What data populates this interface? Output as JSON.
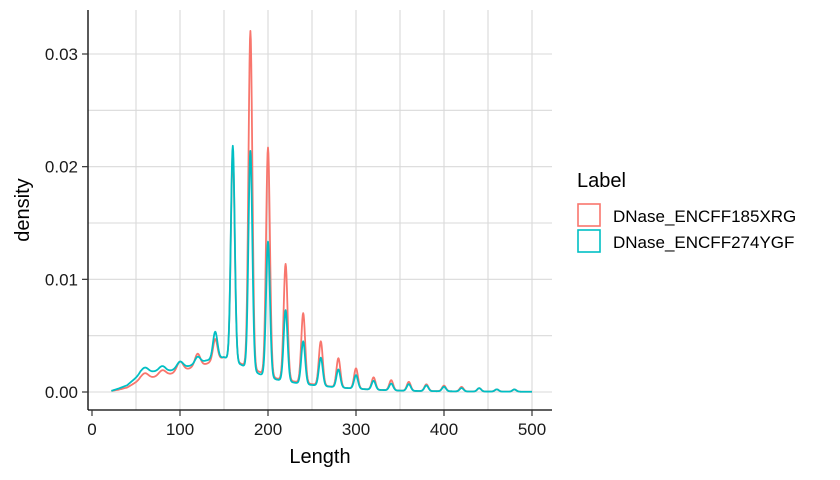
{
  "chart_data": {
    "type": "line",
    "title": "",
    "xlabel": "Length",
    "ylabel": "density",
    "xlim": [
      0,
      500
    ],
    "ylim": [
      0,
      0.033
    ],
    "x_ticks": [
      0,
      100,
      200,
      300,
      400,
      500
    ],
    "x_tick_labels": [
      "0",
      "100",
      "200",
      "300",
      "400",
      "500"
    ],
    "y_ticks": [
      0,
      0.01,
      0.02,
      0.03
    ],
    "y_tick_labels": [
      "0.00",
      "0.01",
      "0.02",
      "0.03"
    ],
    "grid": true,
    "legend_title": "Label",
    "legend_position": "right",
    "x_step": 1,
    "x_range": [
      22,
      500
    ],
    "series": [
      {
        "name": "DNase_ENCFF185XRG",
        "color": "#F8766D",
        "baseline": [
          [
            22,
            0.0001
          ],
          [
            30,
            0.0002
          ],
          [
            40,
            0.0004
          ],
          [
            55,
            0.0011
          ],
          [
            70,
            0.0013
          ],
          [
            85,
            0.0015
          ],
          [
            100,
            0.0018
          ],
          [
            115,
            0.0022
          ],
          [
            130,
            0.0025
          ],
          [
            150,
            0.0031
          ],
          [
            170,
            0.0025
          ],
          [
            190,
            0.0018
          ],
          [
            210,
            0.0012
          ],
          [
            240,
            0.0008
          ],
          [
            280,
            0.0004
          ],
          [
            320,
            0.0002
          ],
          [
            360,
            0.0001
          ],
          [
            420,
            5e-05
          ],
          [
            500,
            2e-05
          ]
        ],
        "peaks": [
          [
            60,
            0.0005,
            4
          ],
          [
            80,
            0.0005,
            4
          ],
          [
            100,
            0.0009,
            3.5
          ],
          [
            120,
            0.0011,
            3
          ],
          [
            140,
            0.0019,
            2.5
          ],
          [
            160,
            0.0184,
            2.2
          ],
          [
            180,
            0.0299,
            2.2
          ],
          [
            200,
            0.0202,
            2.2
          ],
          [
            220,
            0.0103,
            2.2
          ],
          [
            240,
            0.0062,
            2.2
          ],
          [
            260,
            0.0039,
            2.2
          ],
          [
            280,
            0.0026,
            2.2
          ],
          [
            300,
            0.0018,
            2.2
          ],
          [
            320,
            0.0011,
            2.2
          ],
          [
            340,
            0.0009,
            2.2
          ],
          [
            360,
            0.0008,
            2.2
          ],
          [
            380,
            0.0006,
            2.2
          ],
          [
            400,
            0.0005,
            2.2
          ],
          [
            420,
            0.0004,
            2.2
          ],
          [
            440,
            0.0003,
            2.2
          ],
          [
            460,
            0.0002,
            2.2
          ],
          [
            480,
            0.0002,
            2.2
          ]
        ]
      },
      {
        "name": "DNase_ENCFF274YGF",
        "color": "#00BFC4",
        "baseline": [
          [
            22,
            0.0001
          ],
          [
            30,
            0.0003
          ],
          [
            40,
            0.0006
          ],
          [
            55,
            0.0016
          ],
          [
            70,
            0.0018
          ],
          [
            85,
            0.0018
          ],
          [
            100,
            0.0021
          ],
          [
            115,
            0.0024
          ],
          [
            130,
            0.0028
          ],
          [
            150,
            0.0031
          ],
          [
            170,
            0.0024
          ],
          [
            190,
            0.0016
          ],
          [
            210,
            0.0011
          ],
          [
            240,
            0.0007
          ],
          [
            280,
            0.0004
          ],
          [
            320,
            0.0002
          ],
          [
            360,
            0.0001
          ],
          [
            420,
            5e-05
          ],
          [
            500,
            2e-05
          ]
        ],
        "peaks": [
          [
            60,
            0.0005,
            4
          ],
          [
            80,
            0.0005,
            4
          ],
          [
            100,
            0.0006,
            3.5
          ],
          [
            120,
            0.0006,
            3
          ],
          [
            140,
            0.0024,
            2.5
          ],
          [
            160,
            0.0191,
            2.2
          ],
          [
            180,
            0.0194,
            2.2
          ],
          [
            200,
            0.012,
            2.2
          ],
          [
            220,
            0.0063,
            2.2
          ],
          [
            240,
            0.0038,
            2.2
          ],
          [
            260,
            0.0025,
            2.2
          ],
          [
            280,
            0.0016,
            2.2
          ],
          [
            300,
            0.0012,
            2.2
          ],
          [
            320,
            0.0008,
            2.2
          ],
          [
            340,
            0.0006,
            2.2
          ],
          [
            360,
            0.0006,
            2.2
          ],
          [
            380,
            0.0005,
            2.2
          ],
          [
            400,
            0.0004,
            2.2
          ],
          [
            420,
            0.0003,
            2.2
          ],
          [
            440,
            0.0003,
            2.2
          ],
          [
            460,
            0.0002,
            2.2
          ],
          [
            480,
            0.0002,
            2.2
          ]
        ]
      }
    ]
  }
}
